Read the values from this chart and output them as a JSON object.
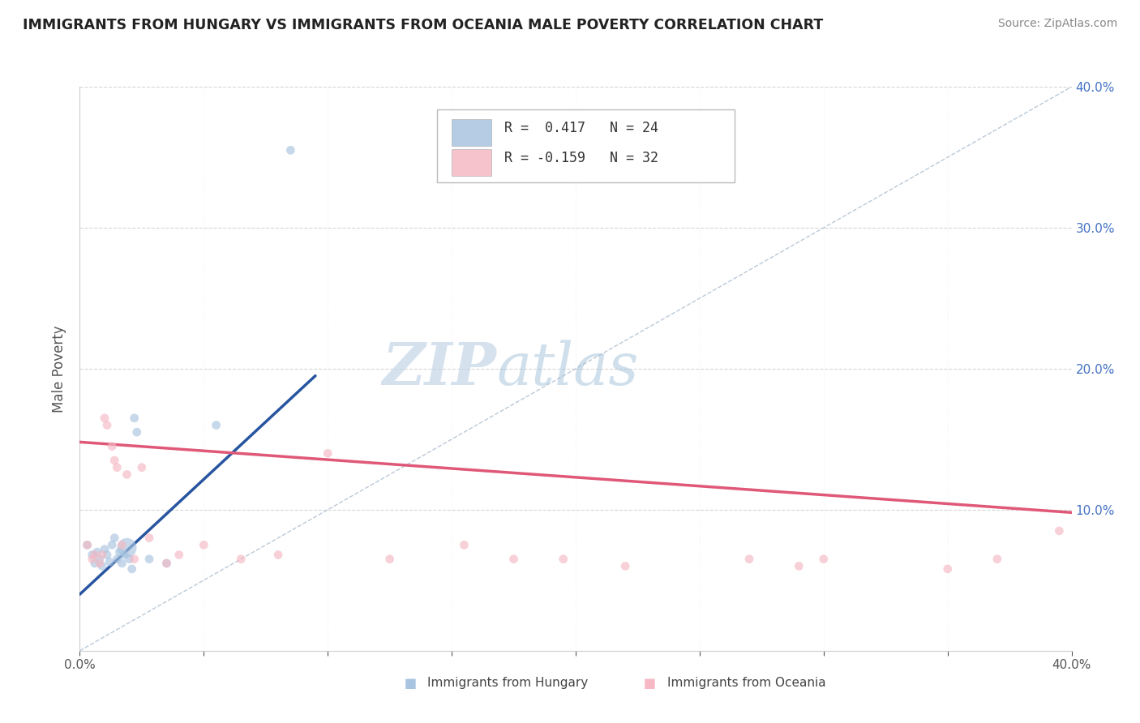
{
  "title": "IMMIGRANTS FROM HUNGARY VS IMMIGRANTS FROM OCEANIA MALE POVERTY CORRELATION CHART",
  "source": "Source: ZipAtlas.com",
  "ylabel": "Male Poverty",
  "xlim": [
    0.0,
    0.4
  ],
  "ylim": [
    0.0,
    0.4
  ],
  "x_ticks": [
    0.0,
    0.1,
    0.2,
    0.3,
    0.4
  ],
  "y_ticks": [
    0.1,
    0.2,
    0.3,
    0.4
  ],
  "legend1_r": "0.417",
  "legend1_n": "24",
  "legend2_r": "-0.159",
  "legend2_n": "32",
  "blue_color": "#a8c4e0",
  "pink_color": "#f5b8c4",
  "blue_line_color": "#2855a0",
  "pink_line_color": "#e05878",
  "diag_line_color": "#aabbcc",
  "watermark_ZIP": "ZIP",
  "watermark_atlas": "atlas",
  "blue_scatter_x": [
    0.003,
    0.005,
    0.006,
    0.007,
    0.008,
    0.009,
    0.01,
    0.011,
    0.012,
    0.013,
    0.014,
    0.015,
    0.016,
    0.017,
    0.018,
    0.019,
    0.02,
    0.021,
    0.022,
    0.023,
    0.028,
    0.035,
    0.055,
    0.085
  ],
  "blue_scatter_y": [
    0.075,
    0.068,
    0.062,
    0.07,
    0.065,
    0.06,
    0.072,
    0.068,
    0.063,
    0.075,
    0.08,
    0.065,
    0.07,
    0.062,
    0.068,
    0.073,
    0.065,
    0.058,
    0.165,
    0.155,
    0.065,
    0.062,
    0.16,
    0.355
  ],
  "blue_scatter_sizes": [
    60,
    60,
    60,
    60,
    60,
    60,
    60,
    60,
    60,
    60,
    60,
    60,
    60,
    60,
    60,
    300,
    60,
    60,
    60,
    60,
    60,
    60,
    60,
    60
  ],
  "pink_scatter_x": [
    0.003,
    0.005,
    0.006,
    0.008,
    0.009,
    0.01,
    0.011,
    0.013,
    0.014,
    0.015,
    0.017,
    0.019,
    0.022,
    0.025,
    0.028,
    0.035,
    0.04,
    0.05,
    0.065,
    0.08,
    0.1,
    0.125,
    0.155,
    0.175,
    0.195,
    0.22,
    0.27,
    0.29,
    0.3,
    0.35,
    0.37,
    0.395
  ],
  "pink_scatter_y": [
    0.075,
    0.065,
    0.068,
    0.062,
    0.068,
    0.165,
    0.16,
    0.145,
    0.135,
    0.13,
    0.075,
    0.125,
    0.065,
    0.13,
    0.08,
    0.062,
    0.068,
    0.075,
    0.065,
    0.068,
    0.14,
    0.065,
    0.075,
    0.065,
    0.065,
    0.06,
    0.065,
    0.06,
    0.065,
    0.058,
    0.065,
    0.085
  ],
  "pink_scatter_sizes": [
    60,
    60,
    60,
    60,
    60,
    60,
    60,
    60,
    60,
    60,
    60,
    60,
    60,
    60,
    60,
    60,
    60,
    60,
    60,
    60,
    60,
    60,
    60,
    60,
    60,
    60,
    60,
    60,
    60,
    60,
    60,
    60
  ],
  "blue_line_x": [
    0.0,
    0.095
  ],
  "blue_line_y": [
    0.04,
    0.195
  ],
  "pink_line_x": [
    0.0,
    0.4
  ],
  "pink_line_y": [
    0.148,
    0.098
  ],
  "diag_line_x": [
    0.0,
    0.4
  ],
  "diag_line_y": [
    0.0,
    0.4
  ],
  "bottom_tick_labels": [
    "0.0%",
    "",
    "",
    "",
    "",
    "",
    "",
    "",
    "40.0%"
  ],
  "bottom_x_positions": [
    0.0,
    0.05,
    0.1,
    0.15,
    0.2,
    0.25,
    0.3,
    0.35,
    0.4
  ]
}
